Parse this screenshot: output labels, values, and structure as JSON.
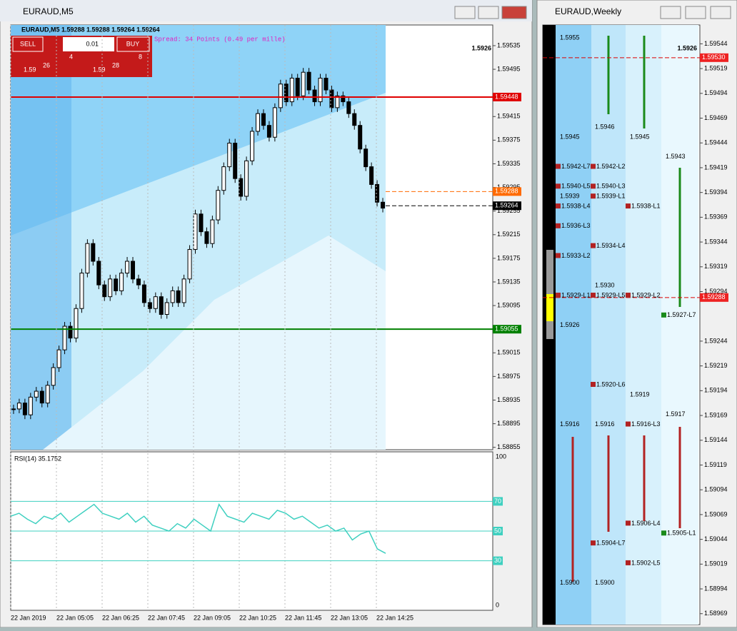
{
  "main": {
    "title": "EURAUD,M5",
    "header": "EURAUD,M5  1.59288 1.59288 1.59264 1.59264",
    "trade": {
      "sell": "SELL",
      "buy": "BUY",
      "lot": "0.01",
      "bid": {
        "head": "1.59",
        "big": "26",
        "tail": "4"
      },
      "ask": {
        "head": "1.59",
        "big": "28",
        "tail": "8"
      }
    },
    "spread": "Spread: 34 Points (0.49 per mille)",
    "price": "1.5926",
    "chart_data": [
      {
        "type": "candlestick",
        "ylim": [
          1.58851,
          1.5957
        ],
        "yticks": [
          1.59535,
          1.59495,
          1.59415,
          1.59375,
          1.59335,
          1.59295,
          1.59255,
          1.59215,
          1.59175,
          1.59135,
          1.59095,
          1.59015,
          1.58975,
          1.58935,
          1.58895,
          1.58855
        ],
        "categories": [
          "22 Jan 2019",
          "22 Jan 05:05",
          "22 Jan 06:25",
          "22 Jan 07:45",
          "22 Jan 09:05",
          "22 Jan 10:25",
          "22 Jan 11:45",
          "22 Jan 13:05",
          "22 Jan 14:25"
        ],
        "closes": [
          1.5892,
          1.5893,
          1.5891,
          1.5894,
          1.5895,
          1.5893,
          1.5896,
          1.5899,
          1.5902,
          1.5906,
          1.5904,
          1.5909,
          1.5915,
          1.592,
          1.5917,
          1.5913,
          1.5911,
          1.5914,
          1.5912,
          1.5915,
          1.5917,
          1.5914,
          1.5913,
          1.591,
          1.5909,
          1.5911,
          1.5908,
          1.591,
          1.5912,
          1.591,
          1.5914,
          1.5919,
          1.5925,
          1.5922,
          1.592,
          1.5924,
          1.5929,
          1.5933,
          1.5937,
          1.5931,
          1.5928,
          1.5934,
          1.5939,
          1.5942,
          1.594,
          1.5938,
          1.5943,
          1.5947,
          1.5944,
          1.5948,
          1.5945,
          1.5949,
          1.5946,
          1.5944,
          1.5948,
          1.5946,
          1.5943,
          1.5945,
          1.5944,
          1.5942,
          1.594,
          1.5936,
          1.5933,
          1.593,
          1.5927,
          1.5926
        ],
        "levels": [
          {
            "value": 1.59448,
            "color": "#e00000"
          },
          {
            "value": 1.59055,
            "color": "#008000"
          }
        ],
        "markers": [
          {
            "value": 1.59288,
            "color": "#ff6a00"
          },
          {
            "value": 1.59264,
            "color": "#000000"
          }
        ]
      },
      {
        "type": "line",
        "title": "RSI(14) 35.1752",
        "ylim": [
          0,
          100
        ],
        "yticks": [
          100,
          0
        ],
        "levels": [
          70,
          50,
          30
        ],
        "color": "#3fd0c0",
        "values": [
          60,
          62,
          58,
          55,
          60,
          58,
          62,
          56,
          60,
          64,
          68,
          62,
          60,
          58,
          62,
          56,
          60,
          54,
          52,
          50,
          55,
          52,
          58,
          54,
          50,
          68,
          60,
          58,
          56,
          62,
          60,
          58,
          64,
          62,
          58,
          60,
          56,
          52,
          54,
          50,
          52,
          44,
          48,
          50,
          38,
          35
        ]
      }
    ]
  },
  "weekly": {
    "title": "EURAUD,Weekly",
    "price": "1.5926",
    "chart_data": {
      "type": "levels",
      "ylim": [
        1.58958,
        1.59563
      ],
      "yticks": [
        1.59544,
        1.59519,
        1.59494,
        1.59469,
        1.59444,
        1.59419,
        1.59394,
        1.59369,
        1.59344,
        1.59319,
        1.59294,
        1.59244,
        1.59219,
        1.59194,
        1.59169,
        1.59144,
        1.59119,
        1.59094,
        1.59069,
        1.59044,
        1.59019,
        1.58994,
        1.58969
      ],
      "markers": [
        {
          "value": 1.5953,
          "label": "1.59530"
        },
        {
          "value": 1.59288,
          "label": "1.59288"
        }
      ],
      "columns": [
        [
          {
            "value": 1.5955,
            "label": "1.5955"
          },
          {
            "value": 1.5945,
            "label": "1.5945"
          },
          {
            "value": 1.5942,
            "label": "1.5942-L7"
          },
          {
            "value": 1.594,
            "label": "1.5940-L5"
          },
          {
            "value": 1.5939,
            "label": "1.5939"
          },
          {
            "value": 1.5938,
            "label": "1.5938-L4"
          },
          {
            "value": 1.5936,
            "label": "1.5936-L3"
          },
          {
            "value": 1.5933,
            "label": "1.5933-L2"
          },
          {
            "value": 1.5929,
            "label": "1.5929-L1"
          },
          {
            "value": 1.5926,
            "label": "1.5926"
          },
          {
            "value": 1.5916,
            "label": "1.5916"
          },
          {
            "value": 1.59,
            "label": "1.5900"
          }
        ],
        [
          {
            "value": 1.5946,
            "label": "1.5946"
          },
          {
            "value": 1.5942,
            "label": "1.5942-L2"
          },
          {
            "value": 1.594,
            "label": "1.5940-L3"
          },
          {
            "value": 1.5939,
            "label": "1.5939-L1"
          },
          {
            "value": 1.5934,
            "label": "1.5934-L4"
          },
          {
            "value": 1.593,
            "label": "1.5930"
          },
          {
            "value": 1.5929,
            "label": "1.5929-L5"
          },
          {
            "value": 1.592,
            "label": "1.5920-L6"
          },
          {
            "value": 1.5916,
            "label": "1.5916"
          },
          {
            "value": 1.5904,
            "label": "1.5904-L7"
          },
          {
            "value": 1.59,
            "label": "1.5900"
          }
        ],
        [
          {
            "value": 1.5945,
            "label": "1.5945"
          },
          {
            "value": 1.5938,
            "label": "1.5938-L1"
          },
          {
            "value": 1.5929,
            "label": "1.5929-L2"
          },
          {
            "value": 1.5919,
            "label": "1.5919"
          },
          {
            "value": 1.5916,
            "label": "1.5916-L3"
          },
          {
            "value": 1.5906,
            "label": "1.5906-L4"
          },
          {
            "value": 1.5902,
            "label": "1.5902-L5"
          }
        ],
        [
          {
            "value": 1.5943,
            "label": "1.5943"
          },
          {
            "value": 1.5927,
            "label": "1.5927-L7"
          },
          {
            "value": 1.5917,
            "label": "1.5917"
          },
          {
            "value": 1.5905,
            "label": "1.5905-L1"
          }
        ]
      ]
    }
  }
}
